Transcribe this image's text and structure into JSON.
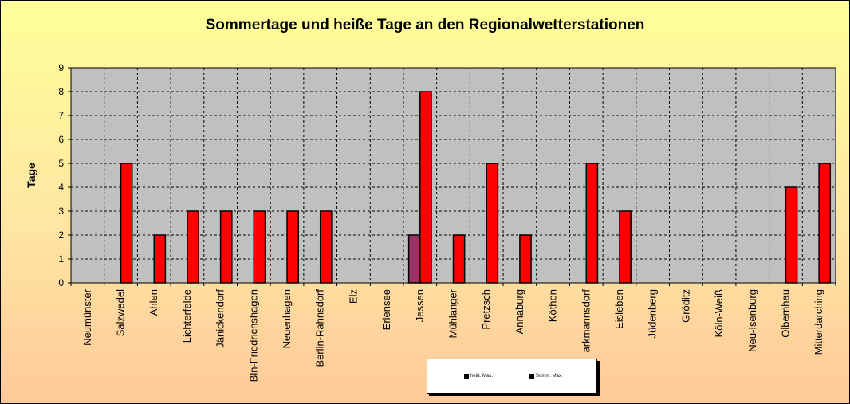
{
  "chart_data": {
    "type": "bar",
    "title": "Sommertage und heiße Tage an den Regionalwetterstationen",
    "ylabel": "Tage",
    "xlabel": "",
    "ylim": [
      0,
      9
    ],
    "yticks": [
      "0",
      "1",
      "2",
      "3",
      "4",
      "5",
      "6",
      "7",
      "8",
      "9"
    ],
    "grid": true,
    "legend_placement": "bottom",
    "categories": [
      "Neumünster",
      "Salzwedel",
      "Ahlen",
      "Lichterfelde",
      "Jänickendorf",
      "Bln-Friedrichshagen",
      "Neuenhagen",
      "Berlin-Rahnsdorf",
      "Elz",
      "Erlensee",
      "Jessen",
      "Mühlanger",
      "Pretzsch",
      "Annaburg",
      "Köthen",
      "arkmannsdorf",
      "Eisleben",
      "Jüdenberg",
      "Gröditz",
      "Köln-Weiß",
      "Neu-Isenburg",
      "Olbernhau",
      "Mitterdarching"
    ],
    "series": [
      {
        "name": "heiß. Max.",
        "color": "#993366",
        "values": [
          0,
          0,
          0,
          0,
          0,
          0,
          0,
          0,
          0,
          0,
          2,
          0,
          0,
          0,
          0,
          0,
          0,
          0,
          0,
          0,
          0,
          0,
          0
        ]
      },
      {
        "name": "Somm. Max.",
        "color": "#ff0000",
        "values": [
          0,
          5,
          2,
          3,
          3,
          3,
          3,
          3,
          0,
          0,
          8,
          2,
          5,
          2,
          0,
          5,
          3,
          0,
          0,
          0,
          0,
          4,
          5
        ]
      }
    ],
    "colors": {
      "plot_background": "#c0c0c0"
    }
  }
}
